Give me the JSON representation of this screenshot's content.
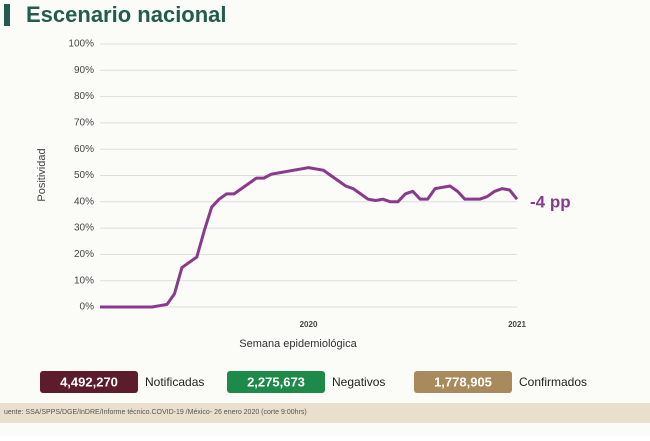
{
  "title": "Escenario nacional",
  "chart_data": {
    "type": "line",
    "y_label": "Positividad",
    "x_label": "Semana epidemiológica",
    "categories": [
      null,
      null,
      null,
      null,
      null,
      null,
      null,
      null,
      null,
      null,
      null,
      null,
      null,
      null,
      null,
      null,
      null,
      null,
      null,
      null,
      null,
      null,
      null,
      null,
      null,
      null,
      null,
      null,
      "2020",
      null,
      null,
      null,
      null,
      null,
      null,
      null,
      null,
      null,
      null,
      null,
      null,
      null,
      null,
      null,
      null,
      null,
      null,
      null,
      null,
      null,
      null,
      null,
      null,
      null,
      null,
      null,
      "2021"
    ],
    "series": [
      {
        "color": "#8a3a8c",
        "values": [
          0,
          0,
          0,
          0,
          0,
          0,
          0,
          0,
          0.5,
          1,
          5,
          15,
          17,
          19,
          29,
          38,
          41,
          43,
          43,
          45,
          47,
          49,
          49,
          50.5,
          51,
          51.5,
          52,
          52.5,
          53,
          52.5,
          52,
          50,
          48,
          46,
          45,
          43,
          41,
          40.5,
          41,
          40,
          40,
          43,
          44,
          41,
          41,
          45,
          45.5,
          46,
          44,
          41,
          41,
          41,
          42,
          44,
          45,
          44.5,
          41
        ]
      }
    ],
    "ylim": [
      0,
      100
    ],
    "yticks": [
      {
        "value": 0,
        "label": "0%"
      },
      {
        "value": 10,
        "label": "10%"
      },
      {
        "value": 20,
        "label": "20%"
      },
      {
        "value": 30,
        "label": "30%"
      },
      {
        "value": 40,
        "label": "40%"
      },
      {
        "value": 50,
        "label": "50%"
      },
      {
        "value": 60,
        "label": "60%"
      },
      {
        "value": 70,
        "label": "70%"
      },
      {
        "value": 80,
        "label": "80%"
      },
      {
        "value": 90,
        "label": "90%"
      },
      {
        "value": 100,
        "label": "100%"
      }
    ],
    "grid": true,
    "annotation": "-4 pp"
  },
  "summary": [
    {
      "value": "4,492,270",
      "label": "Notificadas",
      "color": "#5c1c2c"
    },
    {
      "value": "2,275,673",
      "label": "Negativos",
      "color": "#1e8a4a"
    },
    {
      "value": "1,778,905",
      "label": "Confirmados",
      "color": "#a88a5c"
    }
  ],
  "source": "uente: SSA/SPPS/DGE/InDRE/Informe técnico.COVID-19 /México- 26 enero 2020 (corte 9:00hrs)"
}
